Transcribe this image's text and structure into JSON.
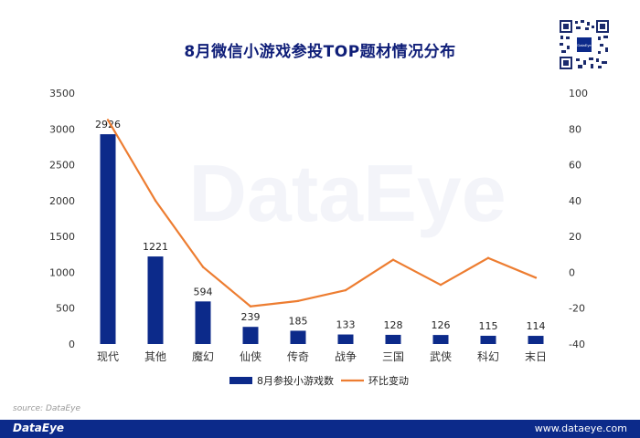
{
  "header": {
    "title": "8月微信小游戏参投TOP题材情况分布",
    "watermark": "DataEye"
  },
  "qr": {
    "caption": "DataEye"
  },
  "source": {
    "text": "source: DataEye"
  },
  "footer": {
    "brand": "DataEye",
    "url": "www.dataeye.com"
  },
  "colors": {
    "bar": "#0c2a8a",
    "line": "#ed7d31",
    "title": "#0f1e78",
    "footer": "#0c2a8a"
  },
  "chart_data": {
    "type": "bar",
    "categories": [
      "现代",
      "其他",
      "魔幻",
      "仙侠",
      "传奇",
      "战争",
      "三国",
      "武侠",
      "科幻",
      "末日"
    ],
    "series": [
      {
        "name": "8月参投小游戏数",
        "type": "bar",
        "axis": "left",
        "values": [
          2926,
          1221,
          594,
          239,
          185,
          133,
          128,
          126,
          115,
          114
        ]
      },
      {
        "name": "环比变动",
        "type": "line",
        "axis": "right",
        "values": [
          85,
          40,
          3,
          -19,
          -16,
          -10,
          7,
          -7,
          8,
          -3
        ]
      }
    ],
    "y_left": {
      "ylim": [
        0,
        3500
      ],
      "ticks": [
        0,
        500,
        1000,
        1500,
        2000,
        2500,
        3000,
        3500
      ]
    },
    "y_right": {
      "ylim": [
        -40,
        100
      ],
      "ticks": [
        -40,
        -20,
        0,
        20,
        40,
        60,
        80,
        100
      ]
    },
    "legend": {
      "position": "bottom",
      "items": [
        {
          "label": "8月参投小游戏数",
          "kind": "bar"
        },
        {
          "label": "环比变动",
          "kind": "line"
        }
      ]
    },
    "grid": false
  }
}
